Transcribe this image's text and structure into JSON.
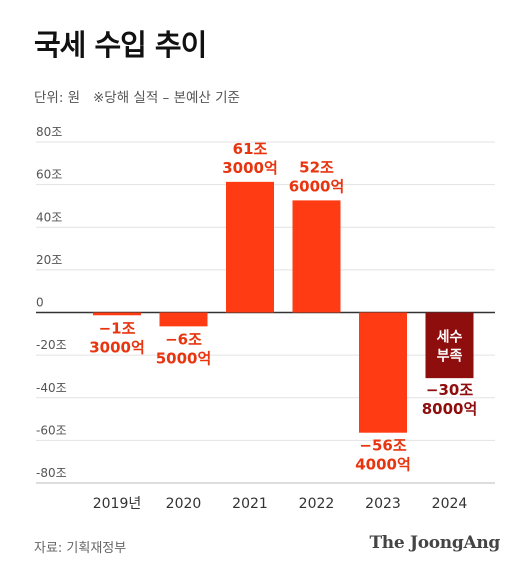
{
  "title": "국세 수입 추이",
  "subtitle": "단위: 원   ※당해 실적 – 본예산 기준",
  "source": "자료: 기획재정부",
  "brand": "The JoongAng",
  "colors": {
    "bar": "#ff3b14",
    "bar_forecast": "#8e0d0d",
    "label": "#e8350f",
    "label_forecast": "#8e0d0d",
    "grid": "#e2e2e2",
    "axis": "#333333"
  },
  "chart_data": {
    "type": "bar",
    "categories": [
      "2019년",
      "2020",
      "2021",
      "2022",
      "2023",
      "2024"
    ],
    "values": [
      -1.3,
      -6.5,
      61.3,
      52.6,
      -56.4,
      -30.8
    ],
    "value_labels": [
      [
        "−1조",
        "3000억"
      ],
      [
        "−6조",
        "5000억"
      ],
      [
        "61조",
        "3000억"
      ],
      [
        "52조",
        "6000억"
      ],
      [
        "−56조",
        "4000억"
      ],
      [
        "−30조",
        "8000억"
      ]
    ],
    "forecast_index": 5,
    "inside_label": [
      "세수",
      "부족"
    ],
    "ylim": [
      -80,
      80
    ],
    "yticks": [
      80,
      60,
      40,
      20,
      0,
      -20,
      -40,
      -60,
      -80
    ],
    "ytick_labels": [
      "80조",
      "60조",
      "40조",
      "20조",
      "0",
      "-20조",
      "-40조",
      "-60조",
      "-80조"
    ],
    "grid": true
  }
}
